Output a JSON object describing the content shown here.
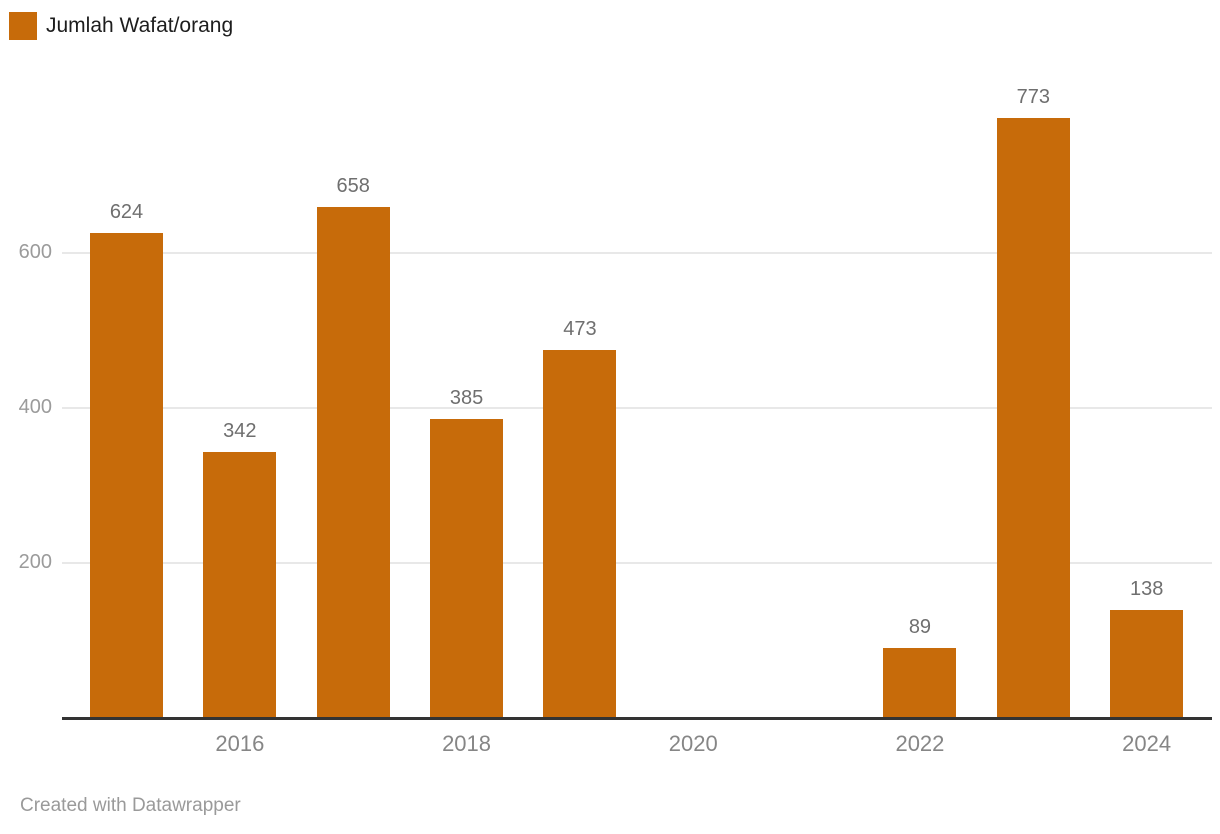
{
  "legend": {
    "label": "Jumlah Wafat/orang"
  },
  "footer": {
    "credit": "Created with Datawrapper"
  },
  "colors": {
    "accent": "#C76B0A",
    "gridline": "#e8e8e8",
    "axis_line": "#333333",
    "value_label": "#6f6f6f",
    "tick_label": "#9b9b9b"
  },
  "chart_data": {
    "type": "bar",
    "title": "",
    "series_name": "Jumlah Wafat/orang",
    "x": [
      2015,
      2016,
      2017,
      2018,
      2019,
      2020,
      2021,
      2022,
      2023,
      2024
    ],
    "values": [
      624,
      342,
      658,
      385,
      473,
      null,
      null,
      89,
      773,
      138
    ],
    "x_ticks": [
      2016,
      2018,
      2020,
      2022,
      2024
    ],
    "y_ticks": [
      200,
      400,
      600
    ],
    "ylim": [
      0,
      800
    ],
    "grid": "horizontal",
    "legend_position": "top-left",
    "bar_color": "#C76B0A",
    "credit": "Created with Datawrapper"
  }
}
